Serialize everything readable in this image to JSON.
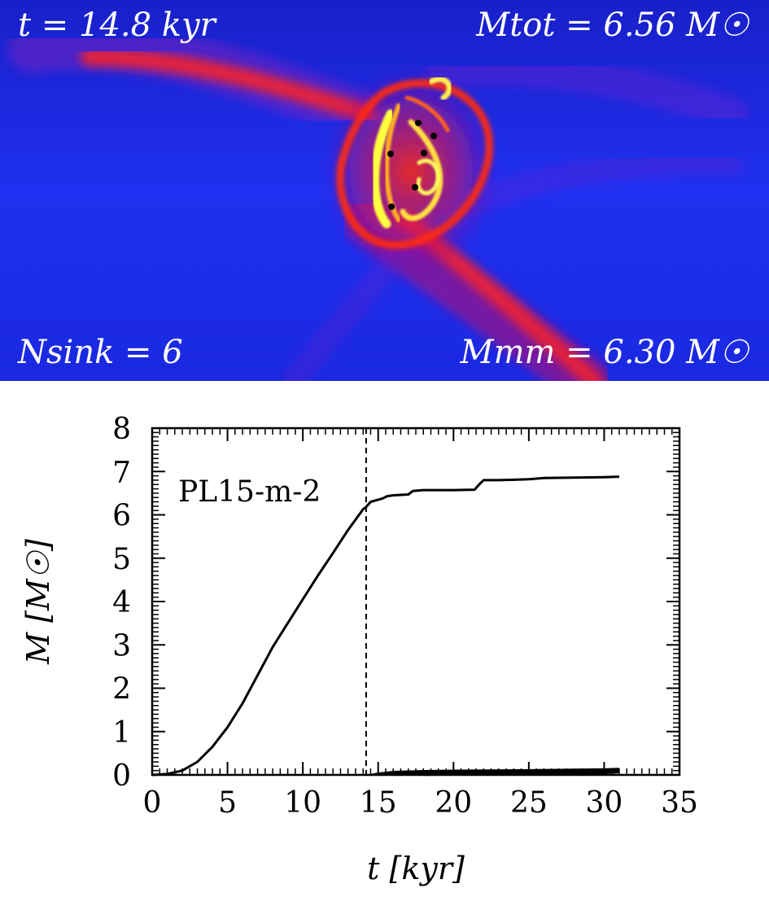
{
  "snapshot": {
    "time_label": "t = 14.8 kyr",
    "mtot_label": "Mtot = 6.56 M☉",
    "nsink_label": "Nsink = 6",
    "mmm_label": "Mmm = 6.30 M☉",
    "sink_count": 6,
    "colors": {
      "background": "#1a1ee8",
      "filament": "#ff1a1a",
      "dense": "#ffff55",
      "sink": "#000000"
    }
  },
  "chart_data": {
    "type": "line",
    "title": "",
    "annotation": "PL15-m-2",
    "xlabel": "t [kyr]",
    "ylabel": "M [M☉]",
    "xlim": [
      0,
      35
    ],
    "ylim": [
      0,
      8
    ],
    "xticks": [
      0,
      5,
      10,
      15,
      20,
      25,
      30,
      35
    ],
    "yticks": [
      0,
      1,
      2,
      3,
      4,
      5,
      6,
      7,
      8
    ],
    "vline_x": 14.2,
    "series": [
      {
        "x": [
          0,
          1,
          2,
          3,
          4,
          5,
          6,
          7,
          8,
          9,
          10,
          11,
          12,
          13,
          14,
          14.2,
          14.5,
          15,
          15.3,
          15.6,
          16,
          17,
          17.3,
          18,
          20,
          21.4,
          21.7,
          22,
          23,
          25,
          26,
          28,
          30,
          31
        ],
        "y": [
          0,
          0.02,
          0.1,
          0.3,
          0.65,
          1.1,
          1.65,
          2.3,
          2.95,
          3.5,
          4.05,
          4.6,
          5.12,
          5.65,
          6.13,
          6.18,
          6.3,
          6.35,
          6.38,
          6.43,
          6.45,
          6.47,
          6.55,
          6.57,
          6.57,
          6.58,
          6.7,
          6.8,
          6.8,
          6.82,
          6.85,
          6.86,
          6.87,
          6.88
        ]
      },
      {
        "x": [
          14.5,
          15,
          16,
          18,
          20,
          25,
          30,
          31
        ],
        "y": [
          0.0,
          0.03,
          0.07,
          0.09,
          0.1,
          0.11,
          0.13,
          0.14
        ]
      },
      {
        "x": [
          14.5,
          15,
          16,
          18,
          20,
          25,
          30,
          31
        ],
        "y": [
          0.0,
          0.02,
          0.05,
          0.07,
          0.08,
          0.09,
          0.1,
          0.12
        ]
      },
      {
        "x": [
          15,
          16,
          18,
          20,
          25,
          30,
          31
        ],
        "y": [
          0.0,
          0.02,
          0.04,
          0.05,
          0.06,
          0.08,
          0.1
        ]
      },
      {
        "x": [
          16,
          18,
          20,
          25,
          30,
          31
        ],
        "y": [
          0.0,
          0.02,
          0.03,
          0.04,
          0.05,
          0.08
        ]
      },
      {
        "x": [
          18,
          20,
          25,
          30,
          31
        ],
        "y": [
          0.0,
          0.01,
          0.02,
          0.04,
          0.06
        ]
      }
    ]
  }
}
